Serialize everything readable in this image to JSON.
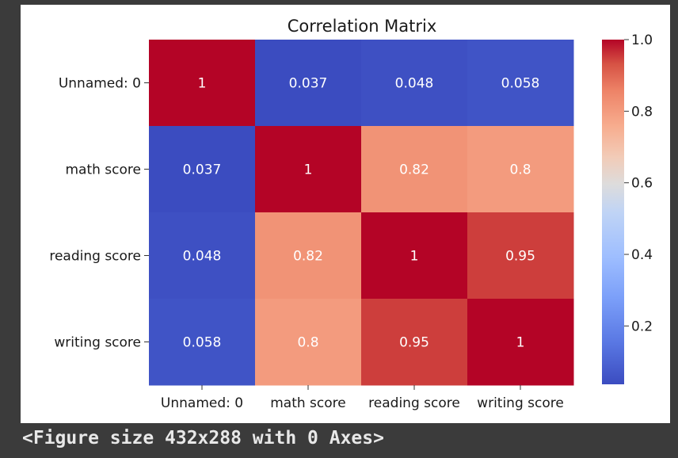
{
  "chart_data": {
    "type": "heatmap",
    "title": "Correlation Matrix",
    "xlabel": "",
    "ylabel": "",
    "x_categories": [
      "Unnamed: 0",
      "math score",
      "reading score",
      "writing score"
    ],
    "y_categories": [
      "Unnamed: 0",
      "math score",
      "reading score",
      "writing score"
    ],
    "values": [
      [
        1,
        0.037,
        0.048,
        0.058
      ],
      [
        0.037,
        1,
        0.82,
        0.8
      ],
      [
        0.048,
        0.82,
        1,
        0.95
      ],
      [
        0.058,
        0.8,
        0.95,
        1
      ]
    ],
    "annotation_labels": [
      [
        "1",
        "0.037",
        "0.048",
        "0.058"
      ],
      [
        "0.037",
        "1",
        "0.82",
        "0.8"
      ],
      [
        "0.048",
        "0.82",
        "1",
        "0.95"
      ],
      [
        "0.058",
        "0.8",
        "0.95",
        "1"
      ]
    ],
    "colormap": "coolwarm",
    "colorbar": {
      "range": [
        0.037,
        1.0
      ],
      "ticks": [
        0.2,
        0.4,
        0.6,
        0.8,
        1.0
      ],
      "tick_labels": [
        "0.2",
        "0.4",
        "0.6",
        "0.8",
        "1.0"
      ]
    },
    "colors": {
      "low": "#3b4cc0",
      "mid": "#dddddd",
      "high": "#b40426",
      "annotation_text": "#ffffff"
    },
    "grid": false
  },
  "console": {
    "output_text": "<Figure size 432x288 with 0 Axes>"
  }
}
